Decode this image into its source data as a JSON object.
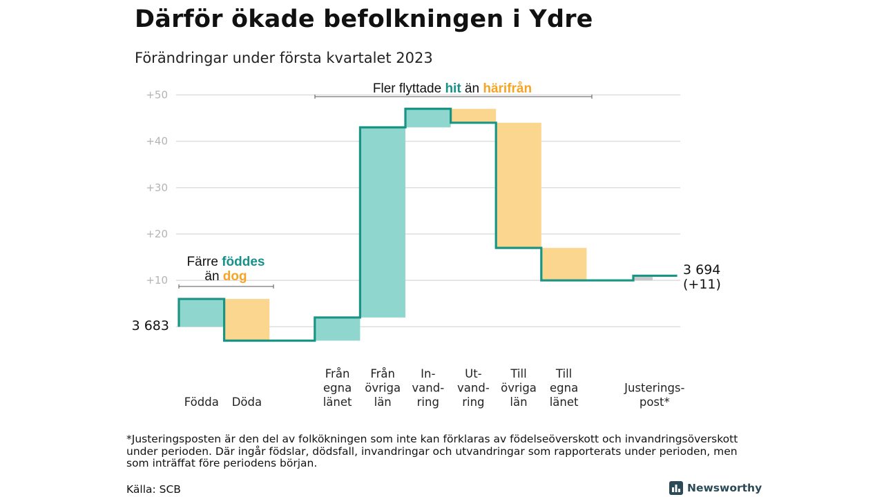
{
  "title": "Därför ökade befolkningen i Ydre",
  "subtitle": "Förändringar under första kvartalet 2023",
  "colors": {
    "line": "#1a9485",
    "teal_fill": "#8ed6ce",
    "orange_fill": "#fbd68e",
    "teal_text": "#16918a",
    "orange_text": "#f6a424",
    "adjust_fill": "#c8c8c8",
    "grid": "#dddddd",
    "brand": "#2a4a57"
  },
  "chart_data": {
    "type": "waterfall",
    "start": {
      "value": 3683,
      "label": "3 683"
    },
    "end": {
      "value": 3694,
      "label": "3 694",
      "change_label": "(+11)"
    },
    "ylim": [
      -3,
      50
    ],
    "yticks": [
      10,
      20,
      30,
      40,
      50
    ],
    "ytick_labels": [
      "+10",
      "+20",
      "+30",
      "+40",
      "+50"
    ],
    "categories": [
      {
        "id": "fodda",
        "lines": [
          "Födda"
        ],
        "from": 0,
        "to": 6,
        "kind": "in"
      },
      {
        "id": "doda",
        "lines": [
          "Döda"
        ],
        "from": 6,
        "to": -3,
        "kind": "out"
      },
      {
        "id": "gap",
        "lines": [],
        "from": -3,
        "to": -3,
        "kind": "none"
      },
      {
        "id": "fran-egna-lanet",
        "lines": [
          "Från",
          "egna",
          "länet"
        ],
        "from": -3,
        "to": 2,
        "kind": "in"
      },
      {
        "id": "fran-ovriga-lan",
        "lines": [
          "Från",
          "övriga",
          "län"
        ],
        "from": 2,
        "to": 43,
        "kind": "in"
      },
      {
        "id": "invandring",
        "lines": [
          "In-",
          "vand-",
          "ring"
        ],
        "from": 43,
        "to": 47,
        "kind": "in"
      },
      {
        "id": "utvandring",
        "lines": [
          "Ut-",
          "vand-",
          "ring"
        ],
        "from": 47,
        "to": 44,
        "kind": "out"
      },
      {
        "id": "till-ovriga-lan",
        "lines": [
          "Till",
          "övriga",
          "län"
        ],
        "from": 44,
        "to": 17,
        "kind": "out"
      },
      {
        "id": "till-egna-lanet",
        "lines": [
          "Till",
          "egna",
          "länet"
        ],
        "from": 17,
        "to": 10,
        "kind": "out"
      },
      {
        "id": "gap2",
        "lines": [],
        "from": 10,
        "to": 10,
        "kind": "none"
      },
      {
        "id": "justeringspost",
        "lines": [
          "Justerings-",
          "post*"
        ],
        "from": 10,
        "to": 11,
        "kind": "adjust"
      }
    ],
    "annotations": {
      "births": {
        "line1_pre": "Färre ",
        "line1_hl": "föddes",
        "line2_pre": "än ",
        "line2_hl": "dog"
      },
      "migration": {
        "pre": "Fler flyttade ",
        "hl1": "hit",
        "mid": " än ",
        "hl2": "härifrån"
      }
    }
  },
  "footnote": "*Justeringsposten är den del av folkökningen som inte kan förklaras av födelseöverskott och invandringsöverskott under perioden. Där ingår födslar, dödsfall, invandringar och utvandringar som rapporterats under perioden, men som inträffat före periodens början.",
  "source": "Källa: SCB",
  "brand": {
    "name": "Newsworthy",
    "icon": "bar-chart-logo-icon"
  }
}
